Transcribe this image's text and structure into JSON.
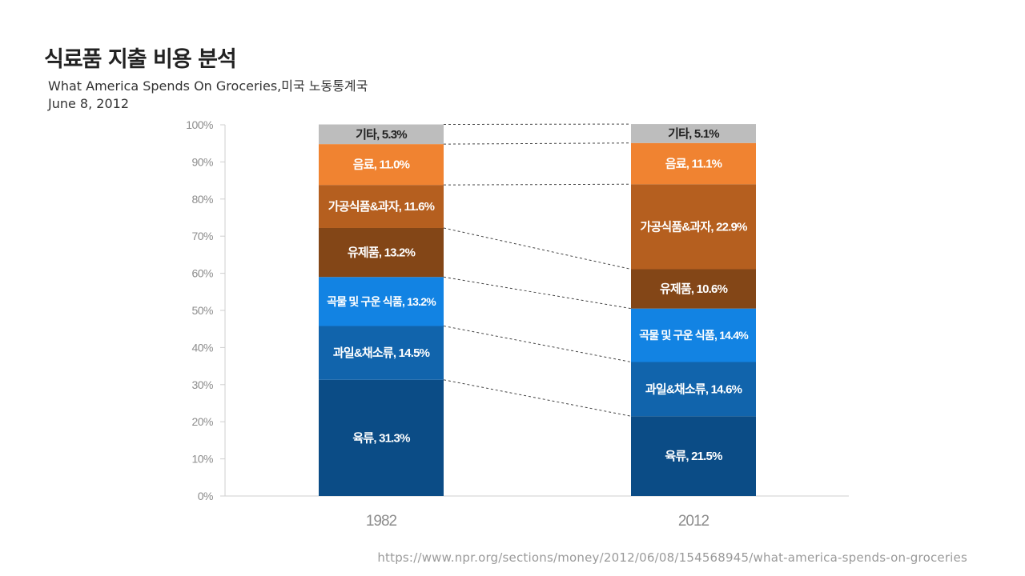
{
  "header": {
    "title": "식료품 지출 비용 분석",
    "subtitle_line1": "What America Spends On Groceries,미국 노동통계국",
    "subtitle_line2": "June 8, 2012"
  },
  "footer": {
    "source_url": "https://www.npr.org/sections/money/2012/06/08/154568945/what-america-spends-on-groceries"
  },
  "chart_data": {
    "type": "bar",
    "stacked": true,
    "title": "식료품 지출 비용 분석",
    "xlabel": "",
    "ylabel": "",
    "ylim": [
      0,
      100
    ],
    "yticks": [
      "0%",
      "10%",
      "20%",
      "30%",
      "40%",
      "50%",
      "60%",
      "70%",
      "80%",
      "90%",
      "100%"
    ],
    "categories": [
      "1982",
      "2012"
    ],
    "series": [
      {
        "name": "육류",
        "values": [
          31.3,
          21.5
        ],
        "color": "#0b4c86",
        "labels": [
          "육류, 31.3%",
          "육류, 21.5%"
        ]
      },
      {
        "name": "과일&채소류",
        "values": [
          14.5,
          14.6
        ],
        "color": "#1164ac",
        "labels": [
          "과일&채소류, 14.5%",
          "과일&채소류, 14.6%"
        ]
      },
      {
        "name": "곡물 및 구운 식품",
        "values": [
          13.2,
          14.4
        ],
        "color": "#1283e3",
        "labels": [
          "곡물 및 구운 식품, 13.2%",
          "곡물 및 구운 식품, 14.4%"
        ]
      },
      {
        "name": "유제품",
        "values": [
          13.2,
          10.6
        ],
        "color": "#834617",
        "labels": [
          "유제품, 13.2%",
          "유제품, 10.6%"
        ]
      },
      {
        "name": "가공식품&과자",
        "values": [
          11.6,
          22.9
        ],
        "color": "#b55f1f",
        "labels": [
          "가공식품&과자, 11.6%",
          "가공식품&과자, 22.9%"
        ]
      },
      {
        "name": "음료",
        "values": [
          11.0,
          11.1
        ],
        "color": "#f08331",
        "labels": [
          "음료, 11.0%",
          "음료, 11.1%"
        ]
      },
      {
        "name": "기타",
        "values": [
          5.3,
          5.1
        ],
        "color": "#bdbdbd",
        "labels": [
          "기타, 5.3%",
          "기타, 5.1%"
        ]
      }
    ],
    "connector_lines": "dashed",
    "grid": false,
    "legend": "none"
  }
}
